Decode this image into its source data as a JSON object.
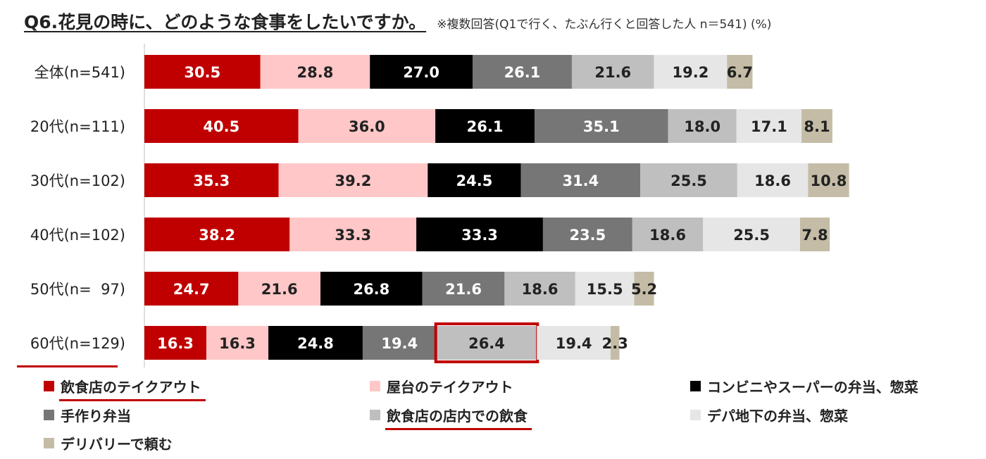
{
  "title": "Q6.花見の時に、どのような食事をしたいですか。",
  "subtitle": "※複数回答(Q1で行く、たぶん行くと回答した人 n＝541) (%)",
  "chart_data": {
    "type": "bar",
    "orientation": "horizontal",
    "stacked": true,
    "categories": [
      "全体(n=541)",
      "20代(n=111)",
      "30代(n=102)",
      "40代(n=102)",
      "50代(n=  97)",
      "60代(n=129)"
    ],
    "series": [
      {
        "name": "飲食店のテイクアウト",
        "color": "#c00000",
        "label_color": "#ffffff",
        "values": [
          30.5,
          40.5,
          35.3,
          38.2,
          24.7,
          16.3
        ]
      },
      {
        "name": "屋台のテイクアウト",
        "color": "#ffc7c7",
        "label_color": "#222222",
        "values": [
          28.8,
          36.0,
          39.2,
          33.3,
          21.6,
          16.3
        ]
      },
      {
        "name": "コンビニやスーパーの弁当、惣菜",
        "color": "#000000",
        "label_color": "#ffffff",
        "values": [
          27.0,
          26.1,
          24.5,
          33.3,
          26.8,
          24.8
        ]
      },
      {
        "name": "手作り弁当",
        "color": "#767676",
        "label_color": "#ffffff",
        "values": [
          26.1,
          35.1,
          31.4,
          23.5,
          21.6,
          19.4
        ]
      },
      {
        "name": "飲食店の店内での飲食",
        "color": "#bfbfbf",
        "label_color": "#222222",
        "values": [
          21.6,
          18.0,
          25.5,
          18.6,
          18.6,
          26.4
        ]
      },
      {
        "name": "デパ地下の弁当、惣菜",
        "color": "#e6e6e6",
        "label_color": "#222222",
        "values": [
          19.2,
          17.1,
          18.6,
          25.5,
          15.5,
          19.4
        ]
      },
      {
        "name": "デリバリーで頼む",
        "color": "#c4bca6",
        "label_color": "#222222",
        "values": [
          6.7,
          8.1,
          10.8,
          7.8,
          5.2,
          2.3
        ]
      }
    ],
    "highlight": {
      "category": "60代(n=129)",
      "series": "飲食店の店内での飲食",
      "color": "#c00000"
    },
    "underlined_category": "60代(n=129)",
    "underlined_legend": [
      "飲食店のテイクアウト",
      "飲食店の店内での飲食"
    ]
  }
}
